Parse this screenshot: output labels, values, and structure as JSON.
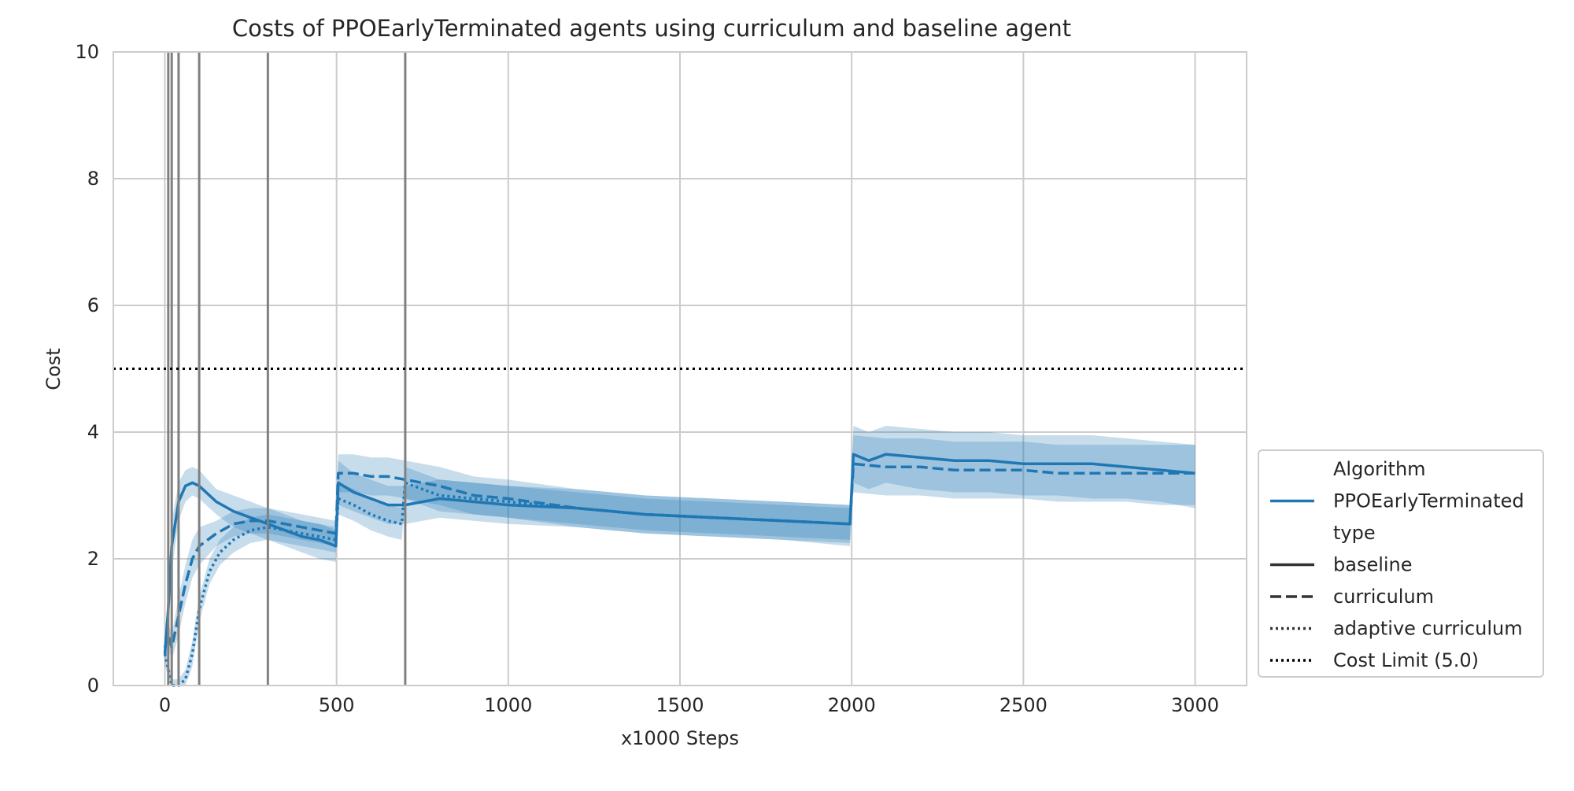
{
  "chart_data": {
    "type": "line",
    "title": "Costs of PPOEarlyTerminated agents using curriculum and baseline agent",
    "xlabel": "x1000 Steps",
    "ylabel": "Cost",
    "xlim": [
      -150,
      3150
    ],
    "ylim": [
      0,
      10
    ],
    "xticks": [
      0,
      500,
      1000,
      1500,
      2000,
      2500,
      3000
    ],
    "yticks": [
      0,
      2,
      4,
      6,
      8,
      10
    ],
    "grid": true,
    "series_color": "#1f77b4",
    "curriculum_stage_boundaries": [
      10,
      20,
      40,
      100,
      300,
      700
    ],
    "boundary_color": "#808080",
    "cost_limit": 5.0,
    "series": [
      {
        "algorithm": "PPOEarlyTerminated",
        "type": "baseline",
        "dash": "solid",
        "x": [
          0,
          10,
          20,
          40,
          60,
          80,
          100,
          150,
          200,
          250,
          300,
          350,
          400,
          450,
          498,
          505,
          550,
          600,
          650,
          700,
          800,
          900,
          1000,
          1200,
          1400,
          1600,
          1800,
          1995,
          2005,
          2050,
          2100,
          2200,
          2300,
          2400,
          2500,
          2600,
          2700,
          2800,
          2900,
          3000
        ],
        "y": [
          0.5,
          1.2,
          2.2,
          2.9,
          3.15,
          3.2,
          3.15,
          2.9,
          2.75,
          2.65,
          2.55,
          2.45,
          2.35,
          2.3,
          2.2,
          3.2,
          3.05,
          2.95,
          2.85,
          2.85,
          2.95,
          2.9,
          2.85,
          2.8,
          2.7,
          2.65,
          2.6,
          2.55,
          3.65,
          3.55,
          3.65,
          3.6,
          3.55,
          3.55,
          3.5,
          3.5,
          3.5,
          3.45,
          3.4,
          3.35
        ],
        "y_lower": [
          0.3,
          0.8,
          1.8,
          2.6,
          2.9,
          3.0,
          2.95,
          2.7,
          2.5,
          2.4,
          2.3,
          2.2,
          2.1,
          2.0,
          1.95,
          2.85,
          2.75,
          2.65,
          2.55,
          2.55,
          2.65,
          2.6,
          2.55,
          2.5,
          2.4,
          2.35,
          2.3,
          2.2,
          3.2,
          3.1,
          3.2,
          3.1,
          3.05,
          3.05,
          3.0,
          3.0,
          2.95,
          2.95,
          2.9,
          2.8
        ],
        "y_upper": [
          0.7,
          1.6,
          2.6,
          3.2,
          3.4,
          3.45,
          3.4,
          3.1,
          3.0,
          2.9,
          2.8,
          2.7,
          2.6,
          2.55,
          2.45,
          3.55,
          3.35,
          3.25,
          3.15,
          3.15,
          3.25,
          3.2,
          3.15,
          3.1,
          3.0,
          2.95,
          2.9,
          2.85,
          4.1,
          4.0,
          4.1,
          4.05,
          4.0,
          4.0,
          3.95,
          3.95,
          3.95,
          3.9,
          3.85,
          3.8
        ]
      },
      {
        "algorithm": "PPOEarlyTerminated",
        "type": "curriculum",
        "dash": "dashed",
        "x": [
          0,
          10,
          20,
          40,
          60,
          80,
          100,
          150,
          200,
          250,
          300,
          350,
          400,
          450,
          498,
          505,
          550,
          600,
          650,
          700,
          800,
          900,
          1000,
          1200,
          1400,
          1600,
          1800,
          1995,
          2005,
          2100,
          2200,
          2300,
          2400,
          2500,
          2600,
          2700,
          2800,
          2900,
          3000
        ],
        "y": [
          0.6,
          0.8,
          0.6,
          1.1,
          1.6,
          2.0,
          2.2,
          2.4,
          2.55,
          2.6,
          2.6,
          2.55,
          2.5,
          2.45,
          2.4,
          3.35,
          3.35,
          3.3,
          3.3,
          3.25,
          3.15,
          3.0,
          2.95,
          2.8,
          2.7,
          2.65,
          2.6,
          2.55,
          3.5,
          3.45,
          3.45,
          3.4,
          3.4,
          3.4,
          3.35,
          3.35,
          3.35,
          3.35,
          3.35
        ],
        "y_lower": [
          0.4,
          0.6,
          0.4,
          0.8,
          1.3,
          1.7,
          1.9,
          2.2,
          2.35,
          2.4,
          2.4,
          2.35,
          2.3,
          2.25,
          2.2,
          3.05,
          3.05,
          3.0,
          3.0,
          2.95,
          2.85,
          2.7,
          2.65,
          2.5,
          2.4,
          2.35,
          2.3,
          2.25,
          3.05,
          3.0,
          3.0,
          2.95,
          2.95,
          2.95,
          2.9,
          2.9,
          2.9,
          2.85,
          2.85
        ],
        "y_upper": [
          0.8,
          1.0,
          0.8,
          1.4,
          1.9,
          2.3,
          2.5,
          2.6,
          2.75,
          2.8,
          2.8,
          2.75,
          2.7,
          2.65,
          2.6,
          3.65,
          3.65,
          3.6,
          3.6,
          3.55,
          3.45,
          3.3,
          3.25,
          3.1,
          3.0,
          2.95,
          2.9,
          2.85,
          3.95,
          3.9,
          3.9,
          3.85,
          3.85,
          3.85,
          3.8,
          3.8,
          3.8,
          3.8,
          3.8
        ]
      },
      {
        "algorithm": "PPOEarlyTerminated",
        "type": "adaptive curriculum",
        "dash": "dotted",
        "x": [
          0,
          20,
          40,
          60,
          80,
          100,
          130,
          160,
          200,
          250,
          300,
          350,
          400,
          450,
          498,
          505,
          550,
          600,
          650,
          690,
          700,
          750,
          800,
          900,
          1000,
          1200,
          1400,
          1600,
          1800,
          1995
        ],
        "y": [
          0.5,
          0.0,
          0.0,
          0.1,
          0.5,
          1.2,
          1.8,
          2.1,
          2.3,
          2.45,
          2.5,
          2.45,
          2.4,
          2.35,
          2.3,
          2.95,
          2.85,
          2.7,
          2.6,
          2.55,
          3.2,
          3.1,
          3.0,
          2.95,
          2.9,
          2.8,
          2.7,
          2.65,
          2.6,
          2.55
        ],
        "y_lower": [
          0.3,
          0.0,
          0.0,
          0.0,
          0.3,
          1.0,
          1.6,
          1.9,
          2.1,
          2.25,
          2.3,
          2.25,
          2.2,
          2.15,
          2.1,
          2.7,
          2.6,
          2.45,
          2.35,
          2.3,
          2.95,
          2.85,
          2.75,
          2.7,
          2.65,
          2.55,
          2.45,
          2.4,
          2.35,
          2.3
        ],
        "y_upper": [
          0.7,
          0.1,
          0.1,
          0.25,
          0.7,
          1.4,
          2.0,
          2.3,
          2.5,
          2.65,
          2.7,
          2.65,
          2.6,
          2.55,
          2.5,
          3.2,
          3.1,
          2.95,
          2.85,
          2.8,
          3.45,
          3.35,
          3.25,
          3.2,
          3.15,
          3.05,
          2.95,
          2.9,
          2.85,
          2.8
        ]
      }
    ],
    "legend": {
      "placement": "lower right, outside plot",
      "entries": [
        {
          "label": "Algorithm",
          "kind": "header"
        },
        {
          "label": "PPOEarlyTerminated",
          "kind": "line",
          "color": "#1f77b4",
          "dash": "solid"
        },
        {
          "label": "type",
          "kind": "header"
        },
        {
          "label": "baseline",
          "kind": "line",
          "color": "#333333",
          "dash": "solid"
        },
        {
          "label": "curriculum",
          "kind": "line",
          "color": "#333333",
          "dash": "dashed"
        },
        {
          "label": "adaptive curriculum",
          "kind": "line",
          "color": "#333333",
          "dash": "dotted"
        },
        {
          "label": "Cost Limit (5.0)",
          "kind": "line",
          "color": "#000000",
          "dash": "dotted"
        }
      ]
    }
  }
}
